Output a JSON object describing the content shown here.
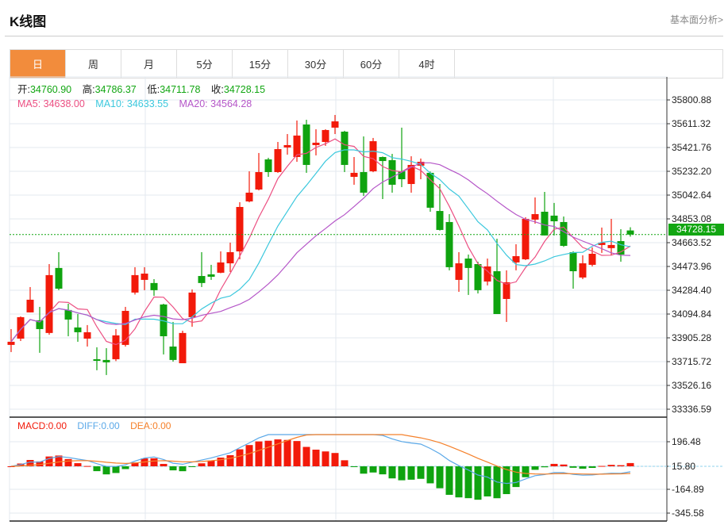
{
  "header": {
    "title": "K线图",
    "link": "基本面分析>"
  },
  "tabs": [
    {
      "label": "日",
      "active": true
    },
    {
      "label": "周"
    },
    {
      "label": "月"
    },
    {
      "label": "5分"
    },
    {
      "label": "15分"
    },
    {
      "label": "30分"
    },
    {
      "label": "60分"
    },
    {
      "label": "4时"
    }
  ],
  "info": {
    "open_label": "开:",
    "open": "34760.90",
    "high_label": "高:",
    "high": "34786.37",
    "low_label": "低:",
    "low": "34711.78",
    "close_label": "收:",
    "close": "34728.15"
  },
  "ma": {
    "ma5": "MA5: 34638.00",
    "ma10": "MA10: 34633.55",
    "ma20": "MA20: 34564.28"
  },
  "macd_info": {
    "macd": "MACD:0.00",
    "diff": "DIFF:0.00",
    "dea": "DEA:0.00"
  },
  "current_price": "34728.15",
  "colors": {
    "up": "#f21a0a",
    "down": "#0fa30f",
    "ma5": "#ec4f82",
    "ma10": "#3cc8dd",
    "ma20": "#b556c8",
    "diff": "#5aa8e8",
    "dea": "#f5802a",
    "accent": "#f28c3c"
  },
  "chart_data": {
    "type": "candlestick",
    "price_axis": [
      "35800.88",
      "35611.32",
      "35421.76",
      "35232.20",
      "35042.64",
      "34853.08",
      "34663.52",
      "34473.96",
      "34284.40",
      "34094.84",
      "33905.28",
      "33715.72",
      "33526.16",
      "33336.59"
    ],
    "price_range": [
      33336.59,
      35800.88
    ],
    "macd_axis": [
      "196.48",
      "15.80",
      "-164.89",
      "-345.58"
    ],
    "ohlc": [
      [
        33849,
        33975,
        33792,
        33874
      ],
      [
        33899,
        34076,
        33880,
        34070
      ],
      [
        34108,
        34310,
        34108,
        34209
      ],
      [
        34045,
        34152,
        33786,
        33975
      ],
      [
        33944,
        34493,
        33930,
        34405
      ],
      [
        34462,
        34588,
        34285,
        34297
      ],
      [
        34127,
        34177,
        33918,
        34051
      ],
      [
        33988,
        34095,
        33874,
        33950
      ],
      [
        33899,
        34007,
        33836,
        33950
      ],
      [
        33735,
        33830,
        33647,
        33722
      ],
      [
        33729,
        33823,
        33609,
        33710
      ],
      [
        33735,
        33975,
        33720,
        33925
      ],
      [
        33849,
        34152,
        33836,
        34120
      ],
      [
        34266,
        34468,
        34250,
        34405
      ],
      [
        34367,
        34468,
        34285,
        34417
      ],
      [
        34342,
        34373,
        34240,
        34285
      ],
      [
        34171,
        34177,
        33773,
        33918
      ],
      [
        33836,
        34032,
        33716,
        33729
      ],
      [
        33703,
        33962,
        33703,
        33944
      ],
      [
        34070,
        34291,
        33994,
        34266
      ],
      [
        34398,
        34588,
        34310,
        34342
      ],
      [
        34411,
        34487,
        34367,
        34392
      ],
      [
        34424,
        34594,
        34420,
        34506
      ],
      [
        34499,
        34664,
        34430,
        34588
      ],
      [
        34594,
        34986,
        34531,
        34948
      ],
      [
        34992,
        35232,
        34985,
        35062
      ],
      [
        35087,
        35378,
        35080,
        35226
      ],
      [
        35327,
        35340,
        35188,
        35226
      ],
      [
        35226,
        35466,
        35220,
        35409
      ],
      [
        35422,
        35529,
        35365,
        35441
      ],
      [
        35346,
        35637,
        35308,
        35517
      ],
      [
        35605,
        35643,
        35220,
        35283
      ],
      [
        35441,
        35567,
        35359,
        35460
      ],
      [
        35466,
        35567,
        35435,
        35561
      ],
      [
        35580,
        35681,
        35529,
        35630
      ],
      [
        35548,
        35555,
        35226,
        35283
      ],
      [
        35188,
        35346,
        35125,
        35220
      ],
      [
        35226,
        35510,
        35036,
        35062
      ],
      [
        35232,
        35498,
        35225,
        35472
      ],
      [
        35346,
        35350,
        35011,
        35314
      ],
      [
        35321,
        35371,
        35062,
        35125
      ],
      [
        35232,
        35580,
        35106,
        35169
      ],
      [
        35131,
        35352,
        35062,
        35283
      ],
      [
        35277,
        35334,
        35169,
        35308
      ],
      [
        35220,
        35230,
        34910,
        34942
      ],
      [
        34916,
        35131,
        34760,
        34765
      ],
      [
        34828,
        34891,
        34443,
        34468
      ],
      [
        34367,
        34588,
        34272,
        34499
      ],
      [
        34537,
        34569,
        34247,
        34462
      ],
      [
        34493,
        34512,
        34259,
        34285
      ],
      [
        34354,
        34537,
        34323,
        34474
      ],
      [
        34436,
        34695,
        34095,
        34095
      ],
      [
        34215,
        34443,
        34032,
        34348
      ],
      [
        34506,
        34651,
        34443,
        34556
      ],
      [
        34531,
        34866,
        34525,
        34853
      ],
      [
        34847,
        35024,
        34815,
        34891
      ],
      [
        34910,
        35068,
        34721,
        34721
      ],
      [
        34879,
        34980,
        34721,
        34834
      ],
      [
        34828,
        34872,
        34630,
        34638
      ],
      [
        34588,
        34595,
        34297,
        34436
      ],
      [
        34386,
        34563,
        34373,
        34499
      ],
      [
        34487,
        34626,
        34474,
        34575
      ],
      [
        34645,
        34784,
        34582,
        34664
      ],
      [
        34620,
        34853,
        34563,
        34645
      ],
      [
        34676,
        34771,
        34512,
        34569
      ],
      [
        34760.9,
        34786.37,
        34711.78,
        34728.15
      ]
    ]
  }
}
